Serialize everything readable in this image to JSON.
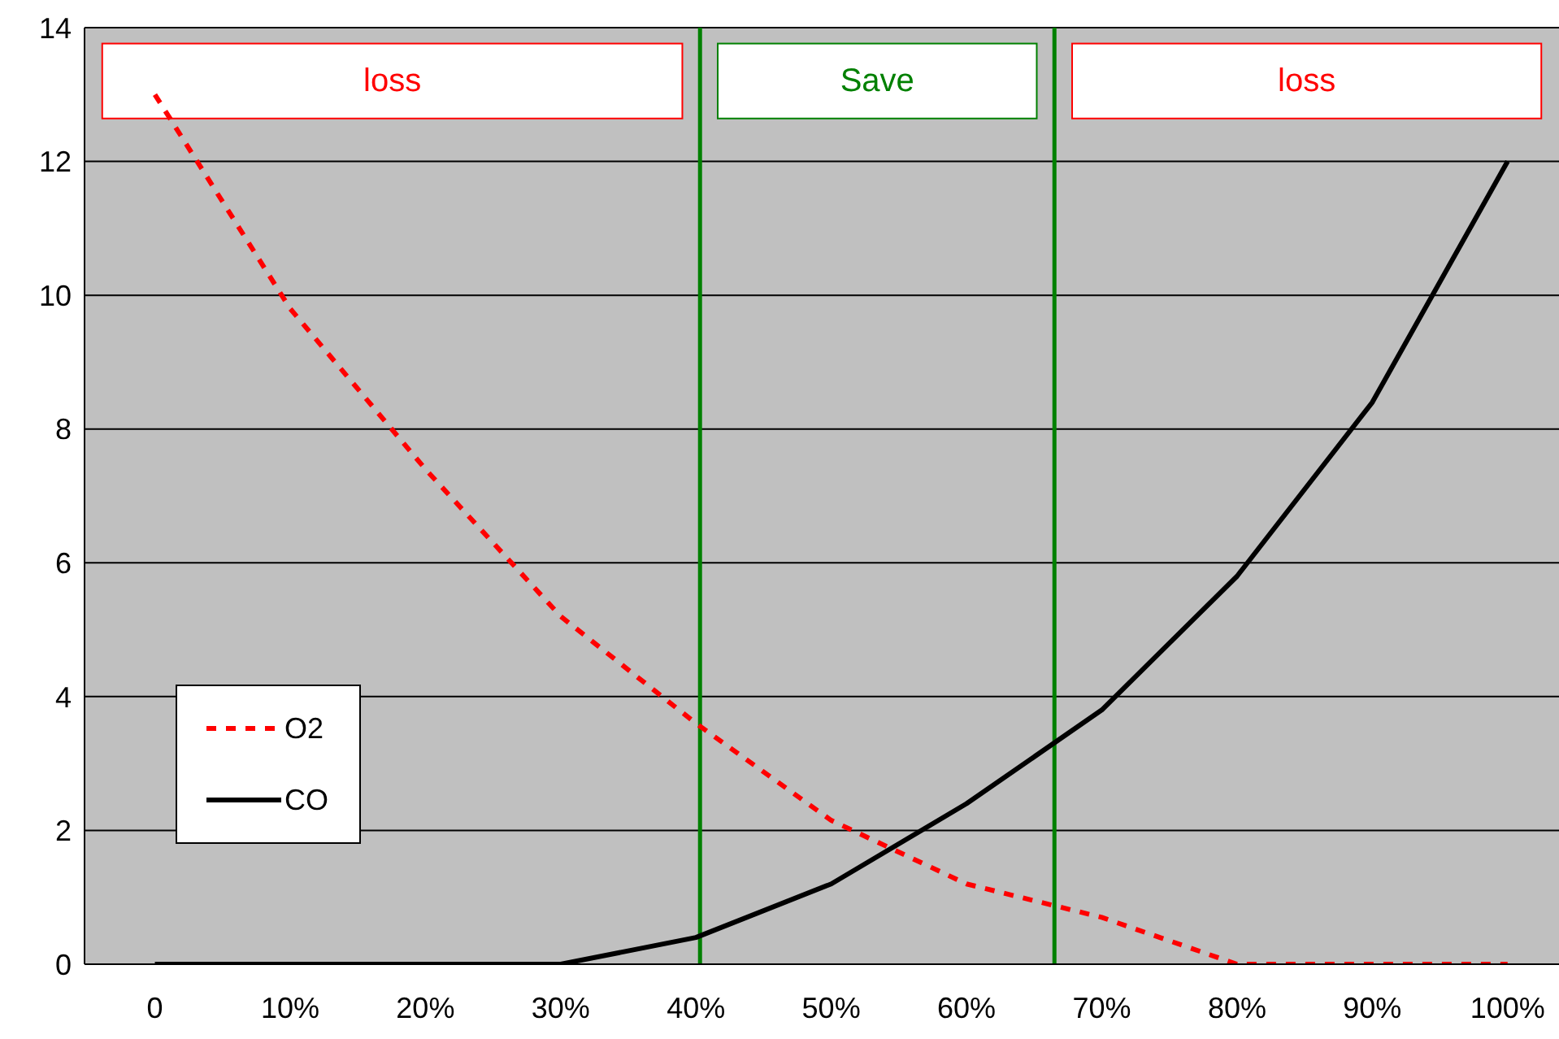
{
  "chart_data": {
    "type": "line",
    "x": [
      0,
      10,
      20,
      30,
      40,
      50,
      60,
      70,
      80,
      90,
      100
    ],
    "series": [
      {
        "name": "O2",
        "color": "#ff0000",
        "line_style": "dashed",
        "values": [
          13,
          9.8,
          7.4,
          5.2,
          3.6,
          2.15,
          1.2,
          0.7,
          0,
          0,
          0
        ]
      },
      {
        "name": "CO",
        "color": "#000000",
        "line_style": "solid",
        "values": [
          0,
          0,
          0,
          0,
          0.4,
          1.2,
          2.4,
          3.8,
          5.8,
          8.4,
          12
        ]
      }
    ],
    "xlim": [
      -5.2,
      103.8
    ],
    "xticks": [
      0,
      {
        "value": 10,
        "label": "10%"
      },
      {
        "value": 20,
        "label": "20%"
      },
      {
        "value": 30,
        "label": "30%"
      },
      {
        "value": 40,
        "label": "40%"
      },
      {
        "value": 50,
        "label": "50%"
      },
      {
        "value": 60,
        "label": "60%"
      },
      {
        "value": 70,
        "label": "70%"
      },
      {
        "value": 80,
        "label": "80%"
      },
      {
        "value": 90,
        "label": "90%"
      },
      {
        "value": 100,
        "label": "100%"
      }
    ],
    "ylim": [
      0,
      14
    ],
    "yticks": [
      0,
      2,
      4,
      6,
      8,
      10,
      12,
      14
    ],
    "ref_lines": [
      {
        "axis": "x",
        "value": 40.3,
        "color": "#008000"
      },
      {
        "axis": "x",
        "value": 66.5,
        "color": "#008000"
      }
    ],
    "annotations": [
      "loss",
      "Save",
      "loss"
    ],
    "grid": "y",
    "legend": "bottom left",
    "marker": "none"
  }
}
